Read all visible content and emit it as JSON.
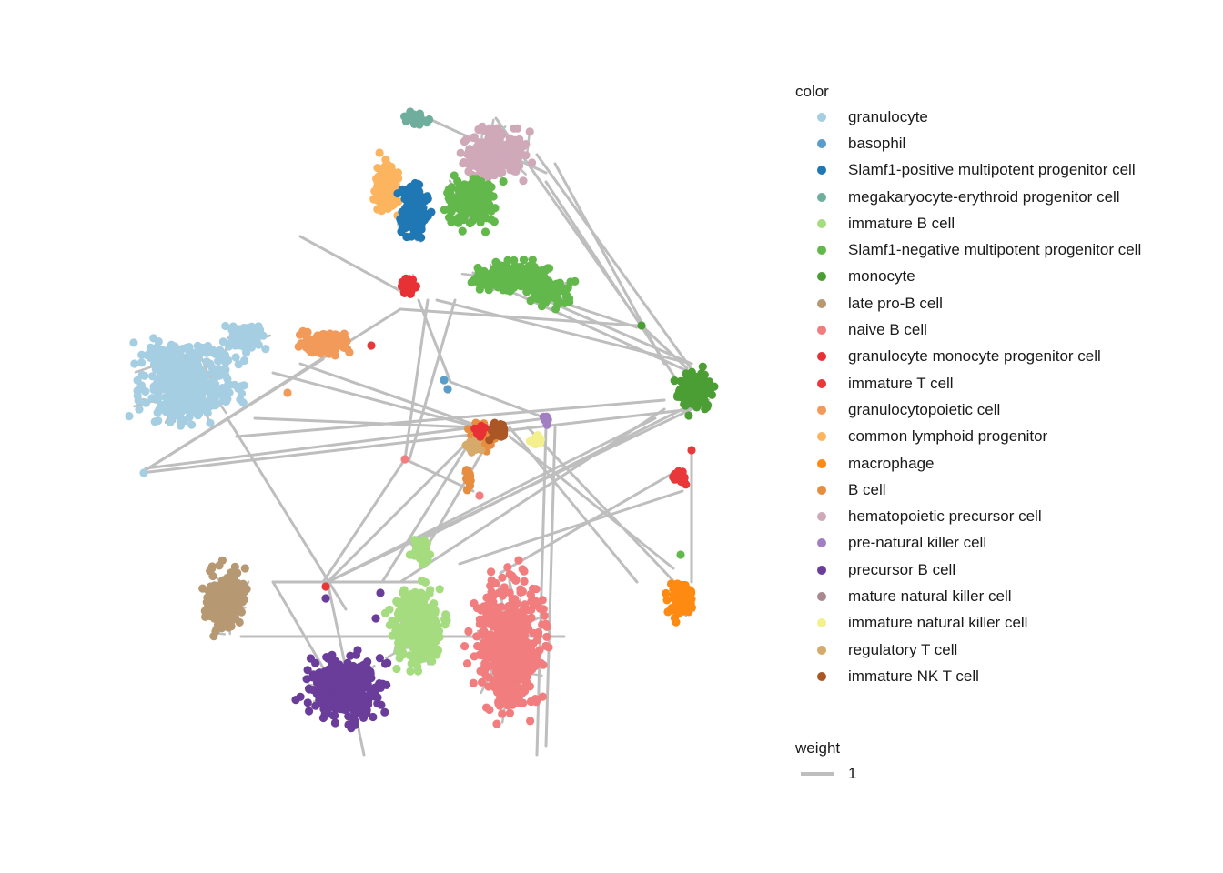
{
  "chart_data": {
    "type": "scatter",
    "subtype": "network graph",
    "edge_color": "#bebebe",
    "legend": {
      "color_title": "color",
      "weight_title": "weight",
      "weight_value": "1"
    },
    "series": [
      {
        "name": "granulocyte",
        "color": "#a6cee3"
      },
      {
        "name": "basophil",
        "color": "#5b9dc9"
      },
      {
        "name": "Slamf1-positive multipotent progenitor cell",
        "color": "#1f78b4"
      },
      {
        "name": "megakaryocyte-erythroid progenitor cell",
        "color": "#6fad9c"
      },
      {
        "name": "immature B cell",
        "color": "#a6dc80"
      },
      {
        "name": "Slamf1-negative multipotent progenitor cell",
        "color": "#63b84c"
      },
      {
        "name": "monocyte",
        "color": "#4a9e34"
      },
      {
        "name": "late pro-B cell",
        "color": "#b69872"
      },
      {
        "name": "naive B cell",
        "color": "#f17d7e"
      },
      {
        "name": "granulocyte monocyte progenitor cell",
        "color": "#e73135"
      },
      {
        "name": "immature T cell",
        "color": "#e8383a"
      },
      {
        "name": "granulocytopoietic cell",
        "color": "#f29a5a"
      },
      {
        "name": "common lymphoid progenitor",
        "color": "#fdb45e"
      },
      {
        "name": "macrophage",
        "color": "#fe8a12"
      },
      {
        "name": "B cell",
        "color": "#e78d40"
      },
      {
        "name": "hematopoietic precursor cell",
        "color": "#d0a9b9"
      },
      {
        "name": "pre-natural killer cell",
        "color": "#a17fc2"
      },
      {
        "name": "precursor B cell",
        "color": "#6a3d9a"
      },
      {
        "name": "mature natural killer cell",
        "color": "#a9898f"
      },
      {
        "name": "immature natural killer cell",
        "color": "#f5f08e"
      },
      {
        "name": "regulatory T cell",
        "color": "#d6aa6a"
      },
      {
        "name": "immature NK T cell",
        "color": "#ab5625"
      }
    ]
  }
}
